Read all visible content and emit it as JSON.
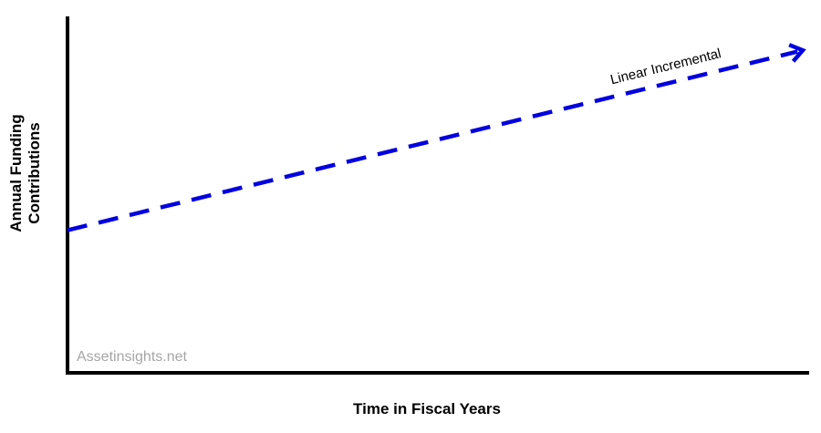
{
  "chart_data": {
    "type": "line",
    "xlabel": "Time in Fiscal Years",
    "ylabel_lines": [
      "Annual Funding",
      "Contributions"
    ],
    "x": [
      0,
      1
    ],
    "xlim": [
      0,
      1
    ],
    "ylim": [
      0,
      1
    ],
    "grid": false,
    "series": [
      {
        "name": "Linear Incremental",
        "values": [
          0.4,
          0.905
        ],
        "color": "#0000e0",
        "style": "dashed",
        "arrow": true
      }
    ]
  },
  "watermark": "Assetinsights.net"
}
